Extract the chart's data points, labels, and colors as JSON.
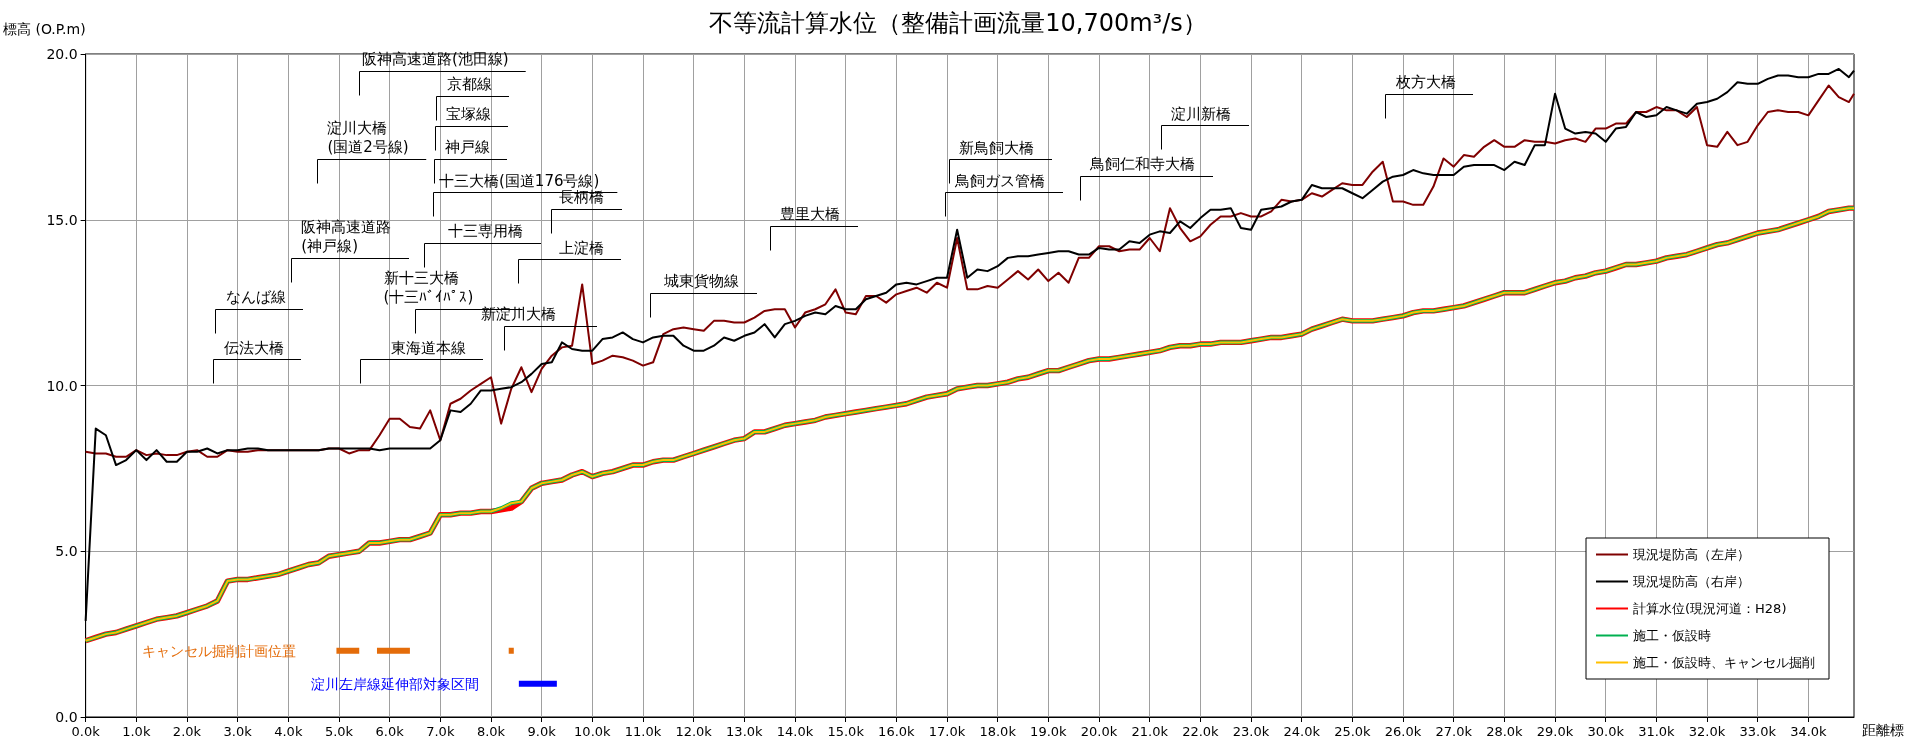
{
  "chart_data": {
    "type": "line",
    "title": "不等流計算水位（整備計画流量10,700m³/s）",
    "ylabel": "標高 (O.P.m)",
    "xlabel": "距離標",
    "x": [
      0,
      0.2,
      0.4,
      0.6,
      0.8,
      1,
      1.2,
      1.4,
      1.6,
      1.8,
      2,
      2.2,
      2.4,
      2.6,
      2.8,
      3,
      3.2,
      3.4,
      3.6,
      3.8,
      4,
      4.2,
      4.4,
      4.6,
      4.8,
      5,
      5.2,
      5.4,
      5.6,
      5.8,
      6,
      6.2,
      6.4,
      6.6,
      6.8,
      7,
      7.2,
      7.4,
      7.6,
      7.8,
      8,
      8.2,
      8.4,
      8.6,
      8.8,
      9,
      9.2,
      9.4,
      9.6,
      9.8,
      10,
      10.2,
      10.4,
      10.6,
      10.8,
      11,
      11.2,
      11.4,
      11.6,
      11.8,
      12,
      12.2,
      12.4,
      12.6,
      12.8,
      13,
      13.2,
      13.4,
      13.6,
      13.8,
      14,
      14.2,
      14.4,
      14.6,
      14.8,
      15,
      15.2,
      15.4,
      15.6,
      15.8,
      16,
      16.2,
      16.4,
      16.6,
      16.8,
      17,
      17.2,
      17.4,
      17.6,
      17.8,
      18,
      18.2,
      18.4,
      18.6,
      18.8,
      19,
      19.2,
      19.4,
      19.6,
      19.8,
      20,
      20.2,
      20.4,
      20.6,
      20.8,
      21,
      21.2,
      21.4,
      21.6,
      21.8,
      22,
      22.2,
      22.4,
      22.6,
      22.8,
      23,
      23.2,
      23.4,
      23.6,
      23.8,
      24,
      24.2,
      24.4,
      24.6,
      24.8,
      25,
      25.2,
      25.4,
      25.6,
      25.8,
      26,
      26.2,
      26.4,
      26.6,
      26.8,
      27,
      27.2,
      27.4,
      27.6,
      27.8,
      28,
      28.2,
      28.4,
      28.6,
      28.8,
      29,
      29.2,
      29.4,
      29.6,
      29.8,
      30,
      30.2,
      30.4,
      30.6,
      30.8,
      31,
      31.2,
      31.4,
      31.6,
      31.8,
      32,
      32.2,
      32.4,
      32.6,
      32.8,
      33,
      33.2,
      33.4,
      33.6,
      33.8,
      34,
      34.2,
      34.4,
      34.6,
      34.8,
      34.9
    ],
    "series": [
      {
        "name": "現況堤防高（左岸）",
        "color": "#7f0000",
        "values": [
          8.0,
          7.95,
          7.95,
          7.85,
          7.85,
          8.05,
          7.9,
          7.95,
          7.9,
          7.9,
          8.0,
          8.05,
          7.85,
          7.85,
          8.05,
          8.0,
          8.0,
          8.05,
          8.05,
          8.05,
          8.05,
          8.05,
          8.05,
          8.05,
          8.1,
          8.1,
          7.95,
          8.05,
          8.05,
          8.5,
          9.0,
          9.0,
          8.75,
          8.7,
          9.25,
          8.35,
          9.45,
          9.6,
          9.85,
          10.05,
          10.25,
          8.85,
          9.9,
          10.55,
          9.8,
          10.5,
          10.9,
          11.15,
          11.2,
          13.05,
          10.65,
          10.75,
          10.9,
          10.85,
          10.75,
          10.6,
          10.7,
          11.55,
          11.7,
          11.75,
          11.7,
          11.65,
          11.95,
          11.95,
          11.9,
          11.9,
          12.05,
          12.25,
          12.3,
          12.3,
          11.75,
          12.2,
          12.3,
          12.45,
          12.9,
          12.2,
          12.15,
          12.7,
          12.7,
          12.5,
          12.75,
          12.85,
          12.95,
          12.8,
          13.1,
          12.95,
          14.45,
          12.9,
          12.9,
          13.0,
          12.95,
          13.2,
          13.45,
          13.2,
          13.5,
          13.15,
          13.4,
          13.1,
          13.85,
          13.85,
          14.2,
          14.2,
          14.05,
          14.1,
          14.1,
          14.45,
          14.05,
          15.35,
          14.75,
          14.35,
          14.5,
          14.85,
          15.1,
          15.1,
          15.2,
          15.1,
          15.1,
          15.25,
          15.6,
          15.55,
          15.6,
          15.8,
          15.7,
          15.9,
          16.1,
          16.05,
          16.05,
          16.45,
          16.75,
          15.55,
          15.55,
          15.45,
          15.45,
          16.0,
          16.85,
          16.6,
          16.95,
          16.9,
          17.2,
          17.4,
          17.2,
          17.2,
          17.4,
          17.35,
          17.35,
          17.3,
          17.4,
          17.45,
          17.35,
          17.75,
          17.75,
          17.9,
          17.9,
          18.25,
          18.25,
          18.4,
          18.3,
          18.3,
          18.1,
          18.4,
          17.25,
          17.2,
          17.65,
          17.25,
          17.35,
          17.85,
          18.25,
          18.3,
          18.25,
          18.25,
          18.15,
          18.6,
          19.05,
          18.7,
          18.55,
          18.8
        ]
      },
      {
        "name": "現況堤防高（右岸）",
        "color": "#000000",
        "values": [
          2.9,
          8.7,
          8.5,
          7.6,
          7.75,
          8.05,
          7.75,
          8.05,
          7.7,
          7.7,
          8.0,
          8.0,
          8.1,
          7.95,
          8.05,
          8.05,
          8.1,
          8.1,
          8.05,
          8.05,
          8.05,
          8.05,
          8.05,
          8.05,
          8.1,
          8.1,
          8.1,
          8.1,
          8.1,
          8.05,
          8.1,
          8.1,
          8.1,
          8.1,
          8.1,
          8.35,
          9.25,
          9.2,
          9.45,
          9.85,
          9.85,
          9.9,
          9.95,
          10.1,
          10.35,
          10.65,
          10.7,
          11.3,
          11.1,
          11.05,
          11.05,
          11.4,
          11.45,
          11.6,
          11.4,
          11.3,
          11.45,
          11.5,
          11.5,
          11.2,
          11.05,
          11.05,
          11.2,
          11.45,
          11.35,
          11.5,
          11.6,
          11.85,
          11.45,
          11.85,
          11.95,
          12.1,
          12.2,
          12.15,
          12.4,
          12.3,
          12.3,
          12.6,
          12.7,
          12.8,
          13.05,
          13.1,
          13.05,
          13.15,
          13.25,
          13.25,
          14.7,
          13.25,
          13.5,
          13.45,
          13.6,
          13.85,
          13.9,
          13.9,
          13.95,
          14.0,
          14.05,
          14.05,
          13.95,
          13.95,
          14.15,
          14.1,
          14.1,
          14.35,
          14.3,
          14.55,
          14.65,
          14.6,
          14.95,
          14.75,
          15.05,
          15.3,
          15.3,
          15.35,
          14.75,
          14.7,
          15.3,
          15.35,
          15.4,
          15.55,
          15.6,
          16.05,
          15.95,
          15.95,
          15.95,
          15.8,
          15.65,
          15.9,
          16.15,
          16.3,
          16.35,
          16.5,
          16.4,
          16.35,
          16.35,
          16.35,
          16.6,
          16.65,
          16.65,
          16.65,
          16.5,
          16.75,
          16.65,
          17.25,
          17.25,
          18.8,
          17.75,
          17.6,
          17.65,
          17.6,
          17.35,
          17.75,
          17.8,
          18.25,
          18.1,
          18.15,
          18.4,
          18.3,
          18.2,
          18.5,
          18.55,
          18.65,
          18.85,
          19.15,
          19.1,
          19.1,
          19.25,
          19.35,
          19.35,
          19.3,
          19.3,
          19.4,
          19.4,
          19.55,
          19.3,
          19.5
        ]
      },
      {
        "name": "計算水位(現況河道：H28)",
        "color": "#ff0000",
        "values": [
          2.3,
          2.4,
          2.5,
          2.55,
          2.65,
          2.75,
          2.85,
          2.95,
          3.0,
          3.05,
          3.15,
          3.25,
          3.35,
          3.5,
          4.1,
          4.15,
          4.15,
          4.2,
          4.25,
          4.3,
          4.4,
          4.5,
          4.6,
          4.65,
          4.85,
          4.9,
          4.95,
          5.0,
          5.25,
          5.25,
          5.3,
          5.35,
          5.35,
          5.45,
          5.55,
          6.1,
          6.1,
          6.15,
          6.15,
          6.2,
          6.2,
          6.25,
          6.3,
          6.5,
          6.9,
          7.05,
          7.1,
          7.15,
          7.3,
          7.4,
          7.25,
          7.35,
          7.4,
          7.5,
          7.6,
          7.6,
          7.7,
          7.75,
          7.75,
          7.85,
          7.95,
          8.05,
          8.15,
          8.25,
          8.35,
          8.4,
          8.6,
          8.6,
          8.7,
          8.8,
          8.85,
          8.9,
          8.95,
          9.05,
          9.1,
          9.15,
          9.2,
          9.25,
          9.3,
          9.35,
          9.4,
          9.45,
          9.55,
          9.65,
          9.7,
          9.75,
          9.9,
          9.95,
          10.0,
          10.0,
          10.05,
          10.1,
          10.2,
          10.25,
          10.35,
          10.45,
          10.45,
          10.55,
          10.65,
          10.75,
          10.8,
          10.8,
          10.85,
          10.9,
          10.95,
          11.0,
          11.05,
          11.15,
          11.2,
          11.2,
          11.25,
          11.25,
          11.3,
          11.3,
          11.3,
          11.35,
          11.4,
          11.45,
          11.45,
          11.5,
          11.55,
          11.7,
          11.8,
          11.9,
          12.0,
          11.95,
          11.95,
          11.95,
          12.0,
          12.05,
          12.1,
          12.2,
          12.25,
          12.25,
          12.3,
          12.35,
          12.4,
          12.5,
          12.6,
          12.7,
          12.8,
          12.8,
          12.8,
          12.9,
          13.0,
          13.1,
          13.15,
          13.25,
          13.3,
          13.4,
          13.45,
          13.55,
          13.65,
          13.65,
          13.7,
          13.75,
          13.85,
          13.9,
          13.95,
          14.05,
          14.15,
          14.25,
          14.3,
          14.4,
          14.5,
          14.6,
          14.65,
          14.7,
          14.8,
          14.9,
          15.0,
          15.1,
          15.25,
          15.3,
          15.35,
          15.35
        ]
      },
      {
        "name": "施工・仮設時",
        "color": "#00b050",
        "values": [
          2.3,
          2.4,
          2.5,
          2.55,
          2.65,
          2.75,
          2.85,
          2.95,
          3.0,
          3.05,
          3.15,
          3.25,
          3.35,
          3.5,
          4.1,
          4.15,
          4.15,
          4.2,
          4.25,
          4.3,
          4.4,
          4.5,
          4.6,
          4.65,
          4.85,
          4.9,
          4.95,
          5.0,
          5.25,
          5.25,
          5.3,
          5.35,
          5.35,
          5.45,
          5.55,
          6.1,
          6.1,
          6.15,
          6.15,
          6.2,
          6.2,
          6.3,
          6.45,
          6.5,
          6.9,
          7.05,
          7.1,
          7.15,
          7.3,
          7.4,
          7.25,
          7.35,
          7.4,
          7.5,
          7.6,
          7.6,
          7.7,
          7.75,
          7.75,
          7.85,
          7.95,
          8.05,
          8.15,
          8.25,
          8.35,
          8.4,
          8.6,
          8.6,
          8.7,
          8.8,
          8.85,
          8.9,
          8.95,
          9.05,
          9.1,
          9.15,
          9.2,
          9.25,
          9.3,
          9.35,
          9.4,
          9.45,
          9.55,
          9.65,
          9.7,
          9.75,
          9.9,
          9.95,
          10.0,
          10.0,
          10.05,
          10.1,
          10.2,
          10.25,
          10.35,
          10.45,
          10.45,
          10.55,
          10.65,
          10.75,
          10.8,
          10.8,
          10.85,
          10.9,
          10.95,
          11.0,
          11.05,
          11.15,
          11.2,
          11.2,
          11.25,
          11.25,
          11.3,
          11.3,
          11.3,
          11.35,
          11.4,
          11.45,
          11.45,
          11.5,
          11.55,
          11.7,
          11.8,
          11.9,
          12.0,
          11.95,
          11.95,
          11.95,
          12.0,
          12.05,
          12.1,
          12.2,
          12.25,
          12.25,
          12.3,
          12.35,
          12.4,
          12.5,
          12.6,
          12.7,
          12.8,
          12.8,
          12.8,
          12.9,
          13.0,
          13.1,
          13.15,
          13.25,
          13.3,
          13.4,
          13.45,
          13.55,
          13.65,
          13.65,
          13.7,
          13.75,
          13.85,
          13.9,
          13.95,
          14.05,
          14.15,
          14.25,
          14.3,
          14.4,
          14.5,
          14.6,
          14.65,
          14.7,
          14.8,
          14.9,
          15.0,
          15.1,
          15.25,
          15.3,
          15.35,
          15.35
        ]
      },
      {
        "name": "施工・仮設時、キャンセル掘削",
        "color": "#ffc000",
        "values": [
          2.3,
          2.4,
          2.5,
          2.55,
          2.65,
          2.75,
          2.85,
          2.95,
          3.0,
          3.05,
          3.15,
          3.25,
          3.35,
          3.5,
          4.1,
          4.15,
          4.15,
          4.2,
          4.25,
          4.3,
          4.4,
          4.5,
          4.6,
          4.65,
          4.85,
          4.9,
          4.95,
          5.0,
          5.25,
          5.25,
          5.3,
          5.35,
          5.35,
          5.45,
          5.55,
          6.1,
          6.1,
          6.15,
          6.15,
          6.2,
          6.2,
          6.3,
          6.45,
          6.5,
          6.9,
          7.05,
          7.1,
          7.15,
          7.3,
          7.4,
          7.25,
          7.35,
          7.4,
          7.5,
          7.6,
          7.6,
          7.7,
          7.75,
          7.75,
          7.85,
          7.95,
          8.05,
          8.15,
          8.25,
          8.35,
          8.4,
          8.6,
          8.6,
          8.7,
          8.8,
          8.85,
          8.9,
          8.95,
          9.05,
          9.1,
          9.15,
          9.2,
          9.25,
          9.3,
          9.35,
          9.4,
          9.45,
          9.55,
          9.65,
          9.7,
          9.75,
          9.9,
          9.95,
          10.0,
          10.0,
          10.05,
          10.1,
          10.2,
          10.25,
          10.35,
          10.45,
          10.45,
          10.55,
          10.65,
          10.75,
          10.8,
          10.8,
          10.85,
          10.9,
          10.95,
          11.0,
          11.05,
          11.15,
          11.2,
          11.2,
          11.25,
          11.25,
          11.3,
          11.3,
          11.3,
          11.35,
          11.4,
          11.45,
          11.45,
          11.5,
          11.55,
          11.7,
          11.8,
          11.9,
          12.0,
          11.95,
          11.95,
          11.95,
          12.0,
          12.05,
          12.1,
          12.2,
          12.25,
          12.25,
          12.3,
          12.35,
          12.4,
          12.5,
          12.6,
          12.7,
          12.8,
          12.8,
          12.8,
          12.9,
          13.0,
          13.1,
          13.15,
          13.25,
          13.3,
          13.4,
          13.45,
          13.55,
          13.65,
          13.65,
          13.7,
          13.75,
          13.85,
          13.9,
          13.95,
          14.05,
          14.15,
          14.25,
          14.3,
          14.4,
          14.5,
          14.6,
          14.65,
          14.7,
          14.8,
          14.9,
          15.0,
          15.1,
          15.25,
          15.3,
          15.35,
          15.35
        ]
      },
      {
        "name": "キャンセル掘削計画位置",
        "color": "#e46c0a",
        "x": [
          4.95,
          5.4,
          5.6,
          5.75,
          6.4,
          7.0,
          8.35,
          8.45
        ],
        "values": [
          2,
          2,
          null,
          2,
          2,
          null,
          2,
          2
        ]
      },
      {
        "name": "淀川左岸線延伸部対象区間",
        "color": "#0000ff",
        "x": [
          8.55,
          9.3
        ],
        "values": [
          1,
          1
        ]
      }
    ],
    "xlim": [
      0,
      34.9
    ],
    "xticks": [
      {
        "value": 0,
        "label": "0.0k"
      },
      {
        "value": 1,
        "label": "1.0k"
      },
      {
        "value": 2,
        "label": "2.0k"
      },
      {
        "value": 3,
        "label": "3.0k"
      },
      {
        "value": 4,
        "label": "4.0k"
      },
      {
        "value": 5,
        "label": "5.0k"
      },
      {
        "value": 6,
        "label": "6.0k"
      },
      {
        "value": 7,
        "label": "7.0k"
      },
      {
        "value": 8,
        "label": "8.0k"
      },
      {
        "value": 9,
        "label": "9.0k"
      },
      {
        "value": 10,
        "label": "10.0k"
      },
      {
        "value": 11,
        "label": "11.0k"
      },
      {
        "value": 12,
        "label": "12.0k"
      },
      {
        "value": 13,
        "label": "13.0k"
      },
      {
        "value": 14,
        "label": "14.0k"
      },
      {
        "value": 15,
        "label": "15.0k"
      },
      {
        "value": 16,
        "label": "16.0k"
      },
      {
        "value": 17,
        "label": "17.0k"
      },
      {
        "value": 18,
        "label": "18.0k"
      },
      {
        "value": 19,
        "label": "19.0k"
      },
      {
        "value": 20,
        "label": "20.0k"
      },
      {
        "value": 21,
        "label": "21.0k"
      },
      {
        "value": 22,
        "label": "22.0k"
      },
      {
        "value": 23,
        "label": "23.0k"
      },
      {
        "value": 24,
        "label": "24.0k"
      },
      {
        "value": 25,
        "label": "25.0k"
      },
      {
        "value": 26,
        "label": "26.0k"
      },
      {
        "value": 27,
        "label": "27.0k"
      },
      {
        "value": 28,
        "label": "28.0k"
      },
      {
        "value": 29,
        "label": "29.0k"
      },
      {
        "value": 30,
        "label": "30.0k"
      },
      {
        "value": 31,
        "label": "31.0k"
      },
      {
        "value": 32,
        "label": "32.0k"
      },
      {
        "value": 33,
        "label": "33.0k"
      },
      {
        "value": 34,
        "label": "34.0k"
      }
    ],
    "ylim": [
      0,
      20
    ],
    "yticks": [
      {
        "value": 0,
        "label": "0.0"
      },
      {
        "value": 5,
        "label": "5.0"
      },
      {
        "value": 10,
        "label": "10.0"
      },
      {
        "value": 15,
        "label": "15.0"
      },
      {
        "value": 20,
        "label": "20.0"
      }
    ],
    "grid": true,
    "legend": "bottom right",
    "marker": "none",
    "line_style": "solid",
    "annotations": [
      "伝法大橋",
      "なんば線",
      "阪神高速道路\n(神戸線)",
      "淀川大橋\n(国道2号線)",
      "阪神高速道路(池田線)",
      "京都線",
      "宝塚線",
      "神戸線",
      "十三大橋(国道176号線)",
      "十三専用橋",
      "新十三大橋\n(十三ﾊﾞｲﾊﾟｽ)",
      "東海道本線",
      "新淀川大橋",
      "長柄橋",
      "上淀橋",
      "城東貨物線",
      "豊里大橋",
      "新鳥飼大橋",
      "鳥飼ガス管橋",
      "鳥飼仁和寺大橋",
      "淀川新橋",
      "枚方大橋"
    ]
  }
}
